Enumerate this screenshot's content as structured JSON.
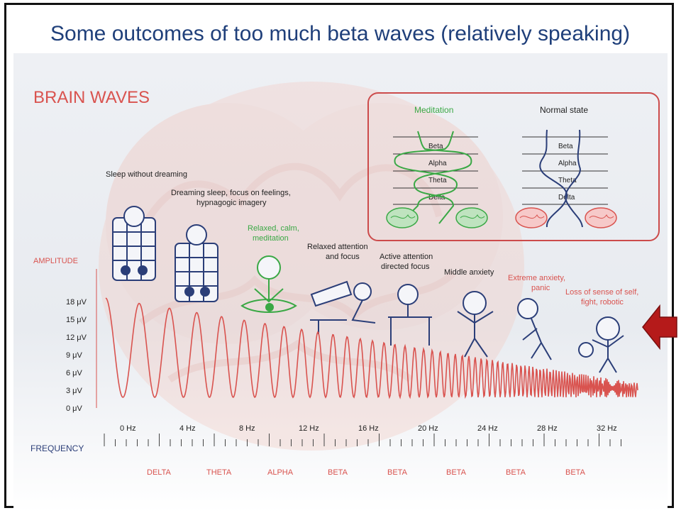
{
  "slide": {
    "title": "Some outcomes of too much beta waves (relatively speaking)"
  },
  "diagram": {
    "heading": "BRAIN WAVES",
    "amplitude_label": "AMPLITUDE",
    "frequency_label": "FREQUENCY",
    "amplitude_ticks": [
      "18 μV",
      "15 μV",
      "12 μV",
      "9 μV",
      "6 μV",
      "3 μV",
      "0 μV"
    ],
    "frequency_ticks": [
      "0 Hz",
      "4 Hz",
      "8 Hz",
      "12 Hz",
      "16 Hz",
      "20 Hz",
      "24 Hz",
      "28 Hz",
      "32 Hz"
    ],
    "bands": [
      "DELTA",
      "THETA",
      "ALPHA",
      "BETA",
      "BETA",
      "BETA",
      "BETA",
      "BETA"
    ],
    "states": {
      "sleep": "Sleep without dreaming",
      "dreaming_1": "Dreaming sleep, focus on feelings,",
      "dreaming_2": "hypnagogic imagery",
      "relaxed_1": "Relaxed, calm,",
      "relaxed_2": "meditation",
      "attention_1": "Relaxed attention",
      "attention_2": "and focus",
      "active_1": "Active attention",
      "active_2": "directed focus",
      "middle": "Middle anxiety",
      "extreme_1": "Extreme anxiety,",
      "extreme_2": "panic",
      "loss_1": "Loss of sense of self,",
      "loss_2": "fight, robotic"
    },
    "inset": {
      "meditation_title": "Meditation",
      "normal_title": "Normal state",
      "levels": [
        "Beta",
        "Alpha",
        "Theta",
        "Delta"
      ]
    }
  },
  "colors": {
    "title_blue": "#1f3f7a",
    "wave_red": "#d9534f",
    "meditation_green": "#3aa845",
    "normal_navy": "#2b3e78",
    "arrow_red": "#b51a1a"
  }
}
